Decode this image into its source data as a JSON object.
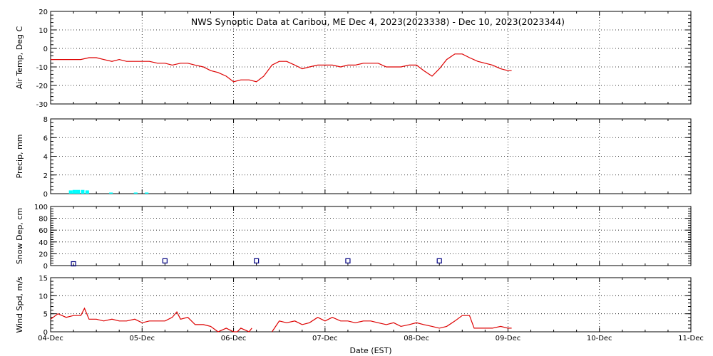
{
  "chart_data": {
    "type": "line",
    "title": "NWS Synoptic Data at Caribou, ME   Dec  4, 2023(2023338) - Dec 10, 2023(2023344)",
    "xlabel": "Date (EST)",
    "x_ticks": [
      "04-Dec",
      "05-Dec",
      "06-Dec",
      "07-Dec",
      "08-Dec",
      "09-Dec",
      "10-Dec",
      "11-Dec"
    ],
    "x_range": [
      0,
      7
    ],
    "grid": true,
    "colors": {
      "temp": "#dd0000",
      "precip": "#00ffff",
      "snow": "#000080",
      "wind": "#dd0000"
    },
    "panels": [
      {
        "id": "temp",
        "type": "line",
        "ylabel": "Air Temp, Deg C",
        "ylim": [
          -30,
          20
        ],
        "yticks": [
          -30,
          -20,
          -10,
          0,
          10,
          20
        ],
        "x": [
          0,
          0.33,
          0.42,
          0.5,
          0.58,
          0.67,
          0.75,
          0.83,
          0.92,
          1.0,
          1.08,
          1.17,
          1.25,
          1.33,
          1.42,
          1.5,
          1.58,
          1.67,
          1.75,
          1.83,
          1.92,
          2.0,
          2.08,
          2.17,
          2.25,
          2.33,
          2.42,
          2.5,
          2.58,
          2.67,
          2.75,
          2.83,
          2.92,
          3.0,
          3.08,
          3.17,
          3.25,
          3.33,
          3.42,
          3.5,
          3.58,
          3.67,
          3.75,
          3.83,
          3.92,
          4.0,
          4.08,
          4.17,
          4.25,
          4.33,
          4.42,
          4.5,
          4.58,
          4.67,
          4.75,
          4.83,
          4.92,
          5.0,
          5.04
        ],
        "y": [
          -6,
          -6,
          -5,
          -5,
          -6,
          -7,
          -6,
          -7,
          -7,
          -7,
          -7,
          -8,
          -8,
          -9,
          -8,
          -8,
          -9,
          -10,
          -12,
          -13,
          -15,
          -18,
          -17,
          -17,
          -18,
          -15,
          -9,
          -7,
          -7,
          -9,
          -11,
          -10,
          -9,
          -9,
          -9,
          -10,
          -9,
          -9,
          -8,
          -8,
          -8,
          -10,
          -10,
          -10,
          -9,
          -9,
          -12,
          -15,
          -11,
          -6,
          -3,
          -3,
          -5,
          -7,
          -8,
          -9,
          -11,
          -12,
          -12
        ]
      },
      {
        "id": "precip",
        "type": "bar",
        "ylabel": "Precip, mm",
        "ylim": [
          0,
          8
        ],
        "yticks": [
          0,
          2,
          4,
          6,
          8
        ],
        "bar_width": 0.04,
        "x": [
          0.22,
          0.26,
          0.3,
          0.35,
          0.4,
          0.66,
          0.93,
          1.05
        ],
        "values": [
          0.35,
          0.4,
          0.4,
          0.4,
          0.35,
          0.12,
          0.12,
          0.12
        ]
      },
      {
        "id": "snow",
        "type": "scatter",
        "ylabel": "Snow Dep, cm",
        "ylim": [
          0,
          100
        ],
        "yticks": [
          0,
          20,
          40,
          60,
          80,
          100
        ],
        "x": [
          0.25,
          1.25,
          2.25,
          3.25,
          4.25
        ],
        "y": [
          3,
          8,
          8,
          8,
          8
        ]
      },
      {
        "id": "wind",
        "type": "line",
        "ylabel": "Wind Spd, m/s",
        "ylim": [
          0,
          15
        ],
        "yticks": [
          0,
          5,
          10,
          15
        ],
        "segments": [
          {
            "x": [
              0,
              0.08,
              0.17,
              0.25,
              0.33,
              0.37,
              0.42,
              0.5,
              0.58,
              0.67,
              0.75,
              0.83,
              0.92,
              1.0,
              1.08,
              1.17,
              1.25,
              1.33,
              1.38,
              1.42,
              1.5,
              1.58,
              1.67,
              1.75,
              1.83,
              1.92,
              2.0,
              2.04,
              2.08,
              2.17,
              2.2
            ],
            "y": [
              3.5,
              5,
              4,
              4.5,
              4.5,
              6.5,
              3.5,
              3.5,
              3,
              3.5,
              3,
              3,
              3.5,
              2.5,
              3,
              3,
              3,
              4,
              5.5,
              3.5,
              4,
              2,
              2,
              1.5,
              0,
              1,
              0,
              0,
              1,
              0,
              1
            ]
          },
          {
            "x": [
              2.42,
              2.5,
              2.58,
              2.67,
              2.75,
              2.83,
              2.92,
              3.0,
              3.08,
              3.17,
              3.25,
              3.33,
              3.42,
              3.5,
              3.58,
              3.67,
              3.75,
              3.83,
              3.92,
              4.0,
              4.08,
              4.17,
              4.25,
              4.33,
              4.42,
              4.5,
              4.58,
              4.63,
              4.67,
              4.75,
              4.83,
              4.92,
              5.0,
              5.04
            ],
            "y": [
              0,
              3,
              2.5,
              3,
              2,
              2.5,
              4,
              3,
              4,
              3,
              3,
              2.5,
              3,
              3,
              2.5,
              2,
              2.5,
              1.5,
              2,
              2.5,
              2,
              1.5,
              1,
              1.5,
              3,
              4.5,
              4.5,
              1,
              1,
              1,
              1,
              1.5,
              1,
              1
            ]
          }
        ]
      }
    ]
  }
}
